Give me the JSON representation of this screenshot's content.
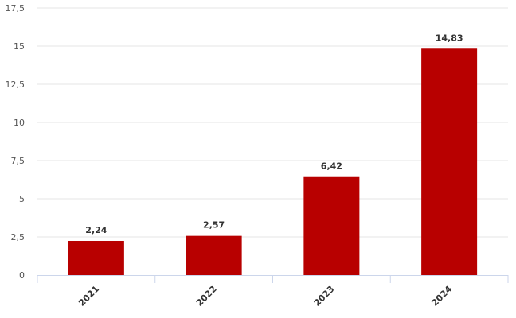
{
  "chart_data": {
    "type": "bar",
    "title": "",
    "xlabel": "",
    "ylabel": "",
    "categories": [
      "2021",
      "2022",
      "2023",
      "2024"
    ],
    "values": [
      2.24,
      2.57,
      6.42,
      14.83
    ],
    "data_labels": [
      "2,24",
      "2,57",
      "6,42",
      "14,83"
    ],
    "y_ticks": [
      0,
      2.5,
      5,
      7.5,
      10,
      12.5,
      15,
      17.5
    ],
    "y_tick_labels": [
      "0",
      "2,5",
      "5",
      "7,5",
      "10",
      "12,5",
      "15",
      "17,5"
    ],
    "ylim": [
      0,
      17.5
    ],
    "grid": true,
    "legend": "none",
    "colors": {
      "bar": "#b80000",
      "grid": "#e6e6e6",
      "axis": "#ccd6eb"
    }
  }
}
